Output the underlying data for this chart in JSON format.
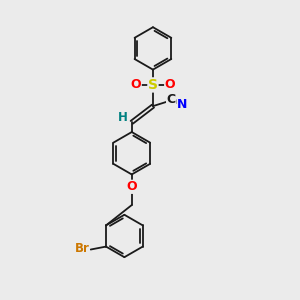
{
  "bg_color": "#ebebeb",
  "bond_color": "#1a1a1a",
  "bond_width": 1.3,
  "atom_colors": {
    "S": "#cccc00",
    "O": "#ff0000",
    "N": "#0000ff",
    "Br": "#cc7700",
    "C": "#1a1a1a",
    "H": "#008080"
  },
  "font_size": 8.5
}
